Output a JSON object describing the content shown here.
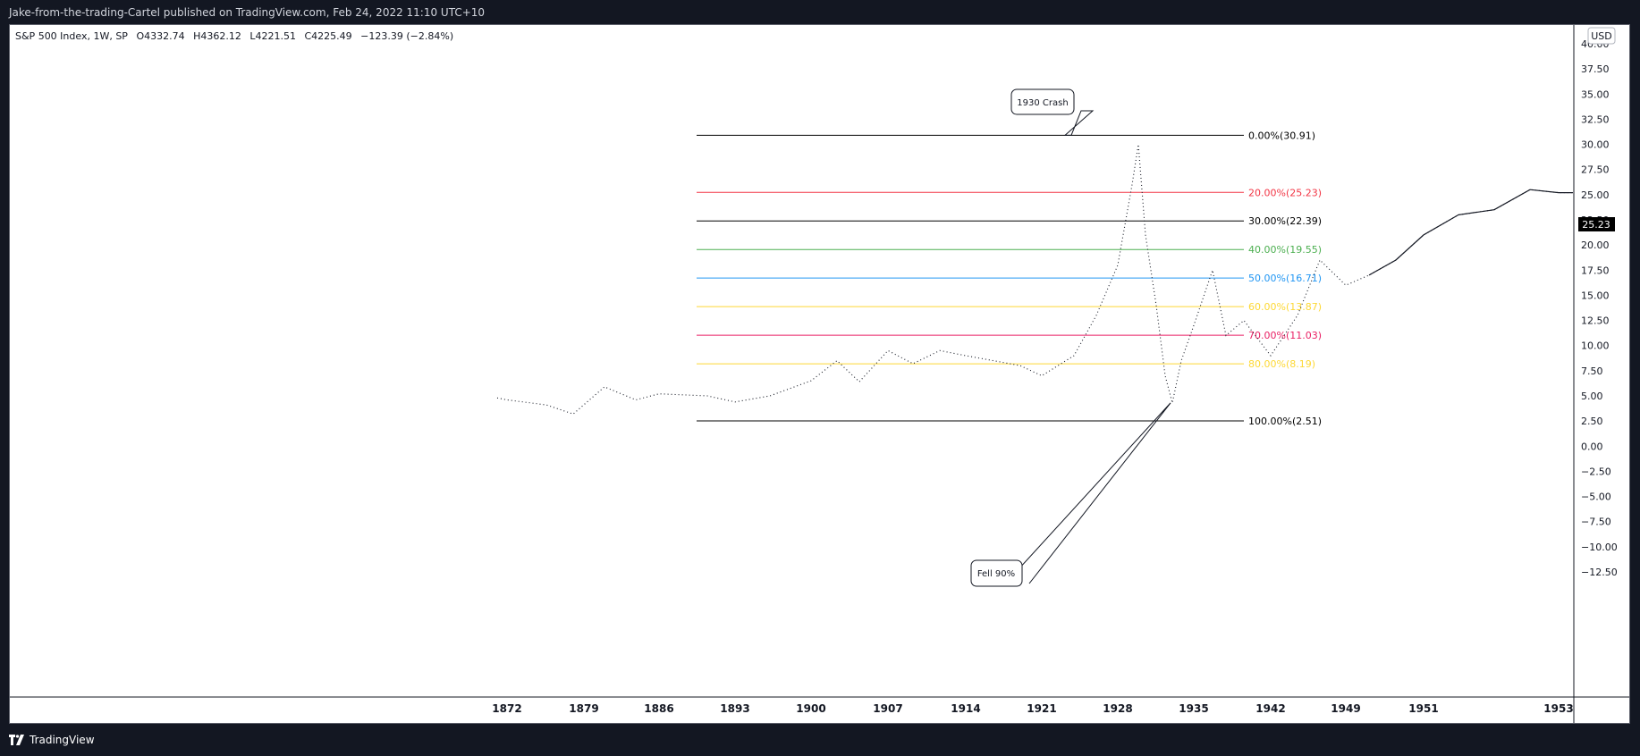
{
  "header": {
    "publish_line": "Jake-from-the-trading-Cartel published on TradingView.com, Feb 24, 2022 11:10 UTC+10"
  },
  "legend": {
    "symbol": "S&P 500 Index, 1W, SP",
    "open": "O4332.74",
    "high": "H4362.12",
    "low": "L4221.51",
    "close": "C4225.49",
    "change": "−123.39 (−2.84%)"
  },
  "footer": {
    "brand": "TradingView",
    "logo_icon": "tradingview-logo-icon"
  },
  "chart_data": {
    "type": "line",
    "currency_label": "USD",
    "price_tag": "25.23",
    "y_ticks": [
      "40.00",
      "37.50",
      "35.00",
      "32.50",
      "30.00",
      "27.50",
      "25.00",
      "22.50",
      "20.00",
      "17.50",
      "15.00",
      "12.50",
      "10.00",
      "7.50",
      "5.00",
      "2.50",
      "0.00",
      "−2.50",
      "−5.00",
      "−7.50",
      "−10.00",
      "−12.50"
    ],
    "x_ticks": [
      "1872",
      "1879",
      "1886",
      "1893",
      "1900",
      "1907",
      "1914",
      "1921",
      "1928",
      "1935",
      "1942",
      "1949",
      "1951",
      "1953"
    ],
    "ylim": [
      -14,
      41.3
    ],
    "fib_levels": [
      {
        "label": "0.00%(30.91)",
        "price": 30.91,
        "color": "#000000"
      },
      {
        "label": "20.00%(25.23)",
        "price": 25.23,
        "color": "#f23645"
      },
      {
        "label": "30.00%(22.39)",
        "price": 22.39,
        "color": "#000000"
      },
      {
        "label": "40.00%(19.55)",
        "price": 19.55,
        "color": "#4caf50"
      },
      {
        "label": "50.00%(16.71)",
        "price": 16.71,
        "color": "#2196f3"
      },
      {
        "label": "60.00%(13.87)",
        "price": 13.87,
        "color": "#fdd835"
      },
      {
        "label": "70.00%(11.03)",
        "price": 11.03,
        "color": "#e91e63"
      },
      {
        "label": "80.00%(8.19)",
        "price": 8.19,
        "color": "#fdd835"
      },
      {
        "label": "100.00%(2.51)",
        "price": 2.51,
        "color": "#000000"
      }
    ],
    "annotations": [
      {
        "text": "1930 Crash",
        "anchor_price": 30.91
      },
      {
        "text": "Fell 90%",
        "anchor_price": 4.3
      }
    ],
    "series": [
      {
        "x": [
          "1872",
          "1879",
          "1886",
          "1893",
          "1900",
          "1907",
          "1914",
          "1921",
          "1928",
          "1935",
          "1942",
          "1949",
          "1951",
          "1953"
        ],
        "values": [
          4.6,
          3.2,
          5.2,
          4.4,
          6.5,
          9.5,
          9.0,
          7.0,
          23.0,
          12.0,
          10.5,
          16.5,
          22.0,
          25.2
        ]
      }
    ],
    "grid": false
  }
}
